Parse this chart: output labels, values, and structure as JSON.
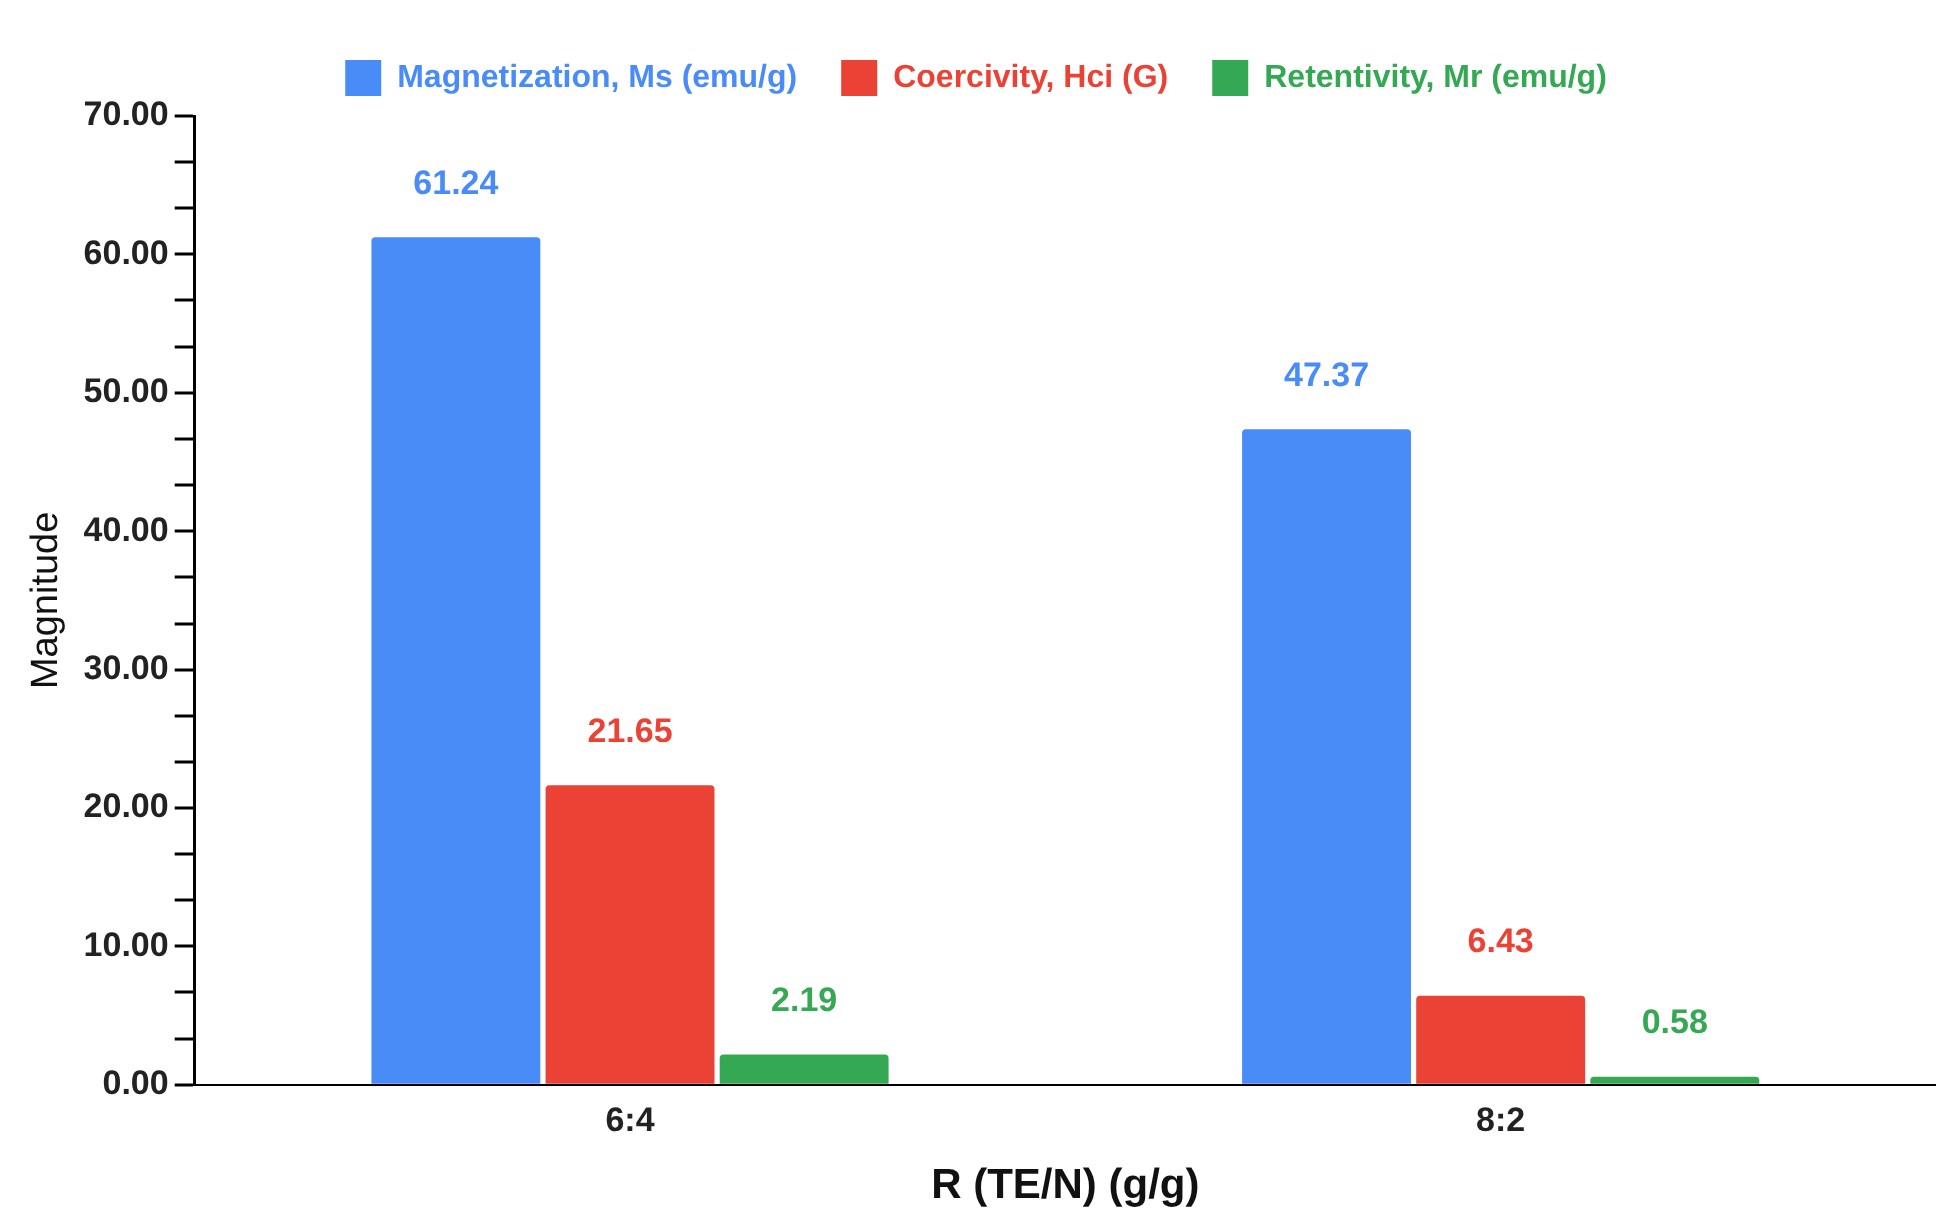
{
  "chart_data": {
    "type": "bar",
    "xlabel": "R (TE/N) (g/g)",
    "ylabel": "Magnitude",
    "categories": [
      "6:4",
      "8:2"
    ],
    "series": [
      {
        "name": "Magnetization, Ms (emu/g)",
        "color": "#4a8cf7",
        "values": [
          61.24,
          47.37
        ]
      },
      {
        "name": "Coercivity, Hci (G)",
        "color": "#ea4335",
        "values": [
          21.65,
          6.43
        ]
      },
      {
        "name": "Retentivity, Mr (emu/g)",
        "color": "#34a853",
        "values": [
          2.19,
          0.58
        ]
      }
    ],
    "ylim": [
      0,
      70
    ],
    "yticks": [
      {
        "value": 0,
        "label": "0.00"
      },
      {
        "value": 3.33,
        "label": null
      },
      {
        "value": 6.67,
        "label": null
      },
      {
        "value": 10,
        "label": "10.00"
      },
      {
        "value": 13.33,
        "label": null
      },
      {
        "value": 16.67,
        "label": null
      },
      {
        "value": 20,
        "label": "20.00"
      },
      {
        "value": 23.33,
        "label": null
      },
      {
        "value": 26.67,
        "label": null
      },
      {
        "value": 30,
        "label": "30.00"
      },
      {
        "value": 33.33,
        "label": null
      },
      {
        "value": 36.67,
        "label": null
      },
      {
        "value": 40,
        "label": "40.00"
      },
      {
        "value": 43.33,
        "label": null
      },
      {
        "value": 46.67,
        "label": null
      },
      {
        "value": 50,
        "label": "50.00"
      },
      {
        "value": 53.33,
        "label": null
      },
      {
        "value": 56.67,
        "label": null
      },
      {
        "value": 60,
        "label": "60.00"
      },
      {
        "value": 63.33,
        "label": null
      },
      {
        "value": 66.67,
        "label": null
      },
      {
        "value": 70,
        "label": "70.00"
      }
    ],
    "grid": false,
    "legend": "top",
    "data_labels": true
  }
}
